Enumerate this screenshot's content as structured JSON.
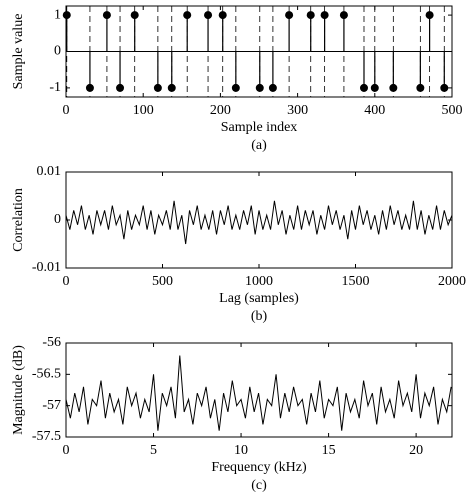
{
  "chart_data": [
    {
      "type": "stem",
      "xlabel": "Sample index",
      "ylabel": "Sample value",
      "caption": "(a)",
      "x": [
        1,
        31,
        53,
        70,
        89,
        119,
        137,
        157,
        184,
        203,
        220,
        251,
        268,
        289,
        317,
        335,
        360,
        386,
        400,
        424,
        459,
        471,
        490
      ],
      "values": [
        1,
        -1,
        1,
        -1,
        1,
        -1,
        -1,
        1,
        1,
        1,
        -1,
        -1,
        -1,
        1,
        1,
        1,
        1,
        -1,
        -1,
        -1,
        -1,
        1,
        -1
      ],
      "color": "#000000",
      "xlim": [
        0,
        500
      ],
      "xticks": [
        0,
        100,
        200,
        300,
        400,
        500
      ],
      "ylim": [
        -1.25,
        1.25
      ],
      "yticks": [
        -1,
        0,
        1
      ]
    },
    {
      "type": "line",
      "xlabel": "Lag (samples)",
      "ylabel": "Correlation",
      "caption": "(b)",
      "x": [
        0,
        20,
        40,
        60,
        80,
        100,
        120,
        140,
        160,
        180,
        200,
        220,
        240,
        260,
        280,
        300,
        320,
        340,
        360,
        380,
        400,
        420,
        440,
        460,
        480,
        500,
        520,
        540,
        560,
        580,
        600,
        620,
        640,
        660,
        680,
        700,
        720,
        740,
        760,
        780,
        800,
        820,
        840,
        860,
        880,
        900,
        920,
        940,
        960,
        980,
        1000,
        1020,
        1040,
        1060,
        1080,
        1100,
        1120,
        1140,
        1160,
        1180,
        1200,
        1220,
        1240,
        1260,
        1280,
        1300,
        1320,
        1340,
        1360,
        1380,
        1400,
        1420,
        1440,
        1460,
        1480,
        1500,
        1520,
        1540,
        1560,
        1580,
        1600,
        1620,
        1640,
        1660,
        1680,
        1700,
        1720,
        1740,
        1760,
        1780,
        1800,
        1820,
        1840,
        1860,
        1880,
        1900,
        1920,
        1940,
        1960,
        1980,
        2000
      ],
      "values": [
        0.001,
        -0.002,
        0.002,
        -0.001,
        0.003,
        -0.002,
        0.001,
        -0.003,
        0.002,
        -0.001,
        0.002,
        -0.002,
        0.003,
        -0.001,
        0.001,
        -0.004,
        0.002,
        -0.002,
        0.001,
        -0.001,
        0.003,
        -0.002,
        0.002,
        -0.003,
        0.001,
        -0.001,
        0.002,
        -0.002,
        0.004,
        -0.002,
        0.001,
        -0.005,
        0.002,
        -0.001,
        0.003,
        -0.002,
        0.001,
        -0.002,
        0.002,
        -0.003,
        0.002,
        -0.001,
        0.003,
        -0.002,
        0.001,
        -0.002,
        0.002,
        -0.001,
        0.003,
        -0.003,
        0.002,
        -0.002,
        0.001,
        -0.002,
        0.004,
        -0.001,
        0.002,
        -0.003,
        0.001,
        -0.002,
        0.003,
        -0.002,
        0.002,
        -0.001,
        0.002,
        -0.003,
        0.001,
        -0.002,
        0.003,
        -0.001,
        0.002,
        -0.002,
        0.001,
        -0.004,
        0.002,
        -0.002,
        0.003,
        -0.001,
        0.002,
        -0.002,
        0.001,
        -0.003,
        0.002,
        -0.002,
        0.003,
        -0.001,
        0.002,
        -0.002,
        0.001,
        -0.002,
        0.004,
        -0.002,
        0.002,
        -0.003,
        0.001,
        -0.002,
        0.003,
        -0.002,
        0.002,
        -0.001,
        0.001
      ],
      "color": "#000000",
      "xlim": [
        0,
        2000
      ],
      "xticks": [
        0,
        500,
        1000,
        1500,
        2000
      ],
      "ylim": [
        -0.01,
        0.01
      ],
      "yticks": [
        -0.01,
        0,
        0.01
      ]
    },
    {
      "type": "line",
      "xlabel": "Frequency (kHz)",
      "ylabel": "Magnitude (dB)",
      "caption": "(c)",
      "x": [
        0,
        0.25,
        0.5,
        0.75,
        1,
        1.25,
        1.5,
        1.75,
        2,
        2.25,
        2.5,
        2.75,
        3,
        3.25,
        3.5,
        3.75,
        4,
        4.25,
        4.5,
        4.75,
        5,
        5.25,
        5.5,
        5.75,
        6,
        6.25,
        6.5,
        6.75,
        7,
        7.25,
        7.5,
        7.75,
        8,
        8.25,
        8.5,
        8.75,
        9,
        9.25,
        9.5,
        9.75,
        10,
        10.25,
        10.5,
        10.75,
        11,
        11.25,
        11.5,
        11.75,
        12,
        12.25,
        12.5,
        12.75,
        13,
        13.25,
        13.5,
        13.75,
        14,
        14.25,
        14.5,
        14.75,
        15,
        15.25,
        15.5,
        15.75,
        16,
        16.25,
        16.5,
        16.75,
        17,
        17.25,
        17.5,
        17.75,
        18,
        18.25,
        18.5,
        18.75,
        19,
        19.25,
        19.5,
        19.75,
        20,
        20.25,
        20.5,
        20.75,
        21,
        21.25,
        21.5,
        21.75,
        22
      ],
      "values": [
        -56.9,
        -57.2,
        -56.8,
        -57.1,
        -56.7,
        -57.3,
        -56.9,
        -57.0,
        -56.6,
        -57.2,
        -56.8,
        -57.1,
        -56.9,
        -57.3,
        -56.7,
        -57.0,
        -56.8,
        -57.2,
        -56.9,
        -57.1,
        -56.5,
        -57.4,
        -56.8,
        -57.0,
        -56.7,
        -57.2,
        -56.2,
        -57.1,
        -56.9,
        -57.3,
        -56.8,
        -57.0,
        -56.7,
        -57.2,
        -56.9,
        -57.4,
        -56.8,
        -57.1,
        -56.6,
        -57.0,
        -56.9,
        -57.2,
        -56.7,
        -57.1,
        -56.8,
        -57.3,
        -56.9,
        -57.0,
        -56.5,
        -57.2,
        -56.8,
        -57.1,
        -56.7,
        -57.0,
        -56.9,
        -57.3,
        -56.8,
        -57.1,
        -56.6,
        -57.2,
        -56.9,
        -57.0,
        -56.7,
        -57.4,
        -56.8,
        -57.1,
        -56.9,
        -57.2,
        -56.6,
        -57.0,
        -56.8,
        -57.3,
        -56.7,
        -57.1,
        -56.9,
        -57.2,
        -56.6,
        -57.0,
        -56.8,
        -57.1,
        -56.5,
        -57.2,
        -56.8,
        -57.0,
        -56.7,
        -57.3,
        -56.9,
        -57.1,
        -56.7
      ],
      "color": "#000000",
      "xlim": [
        0,
        22.05
      ],
      "xticks": [
        0,
        5,
        10,
        15,
        20
      ],
      "ylim": [
        -57.5,
        -56
      ],
      "yticks": [
        -57.5,
        -57,
        -56.5,
        -56
      ]
    }
  ]
}
